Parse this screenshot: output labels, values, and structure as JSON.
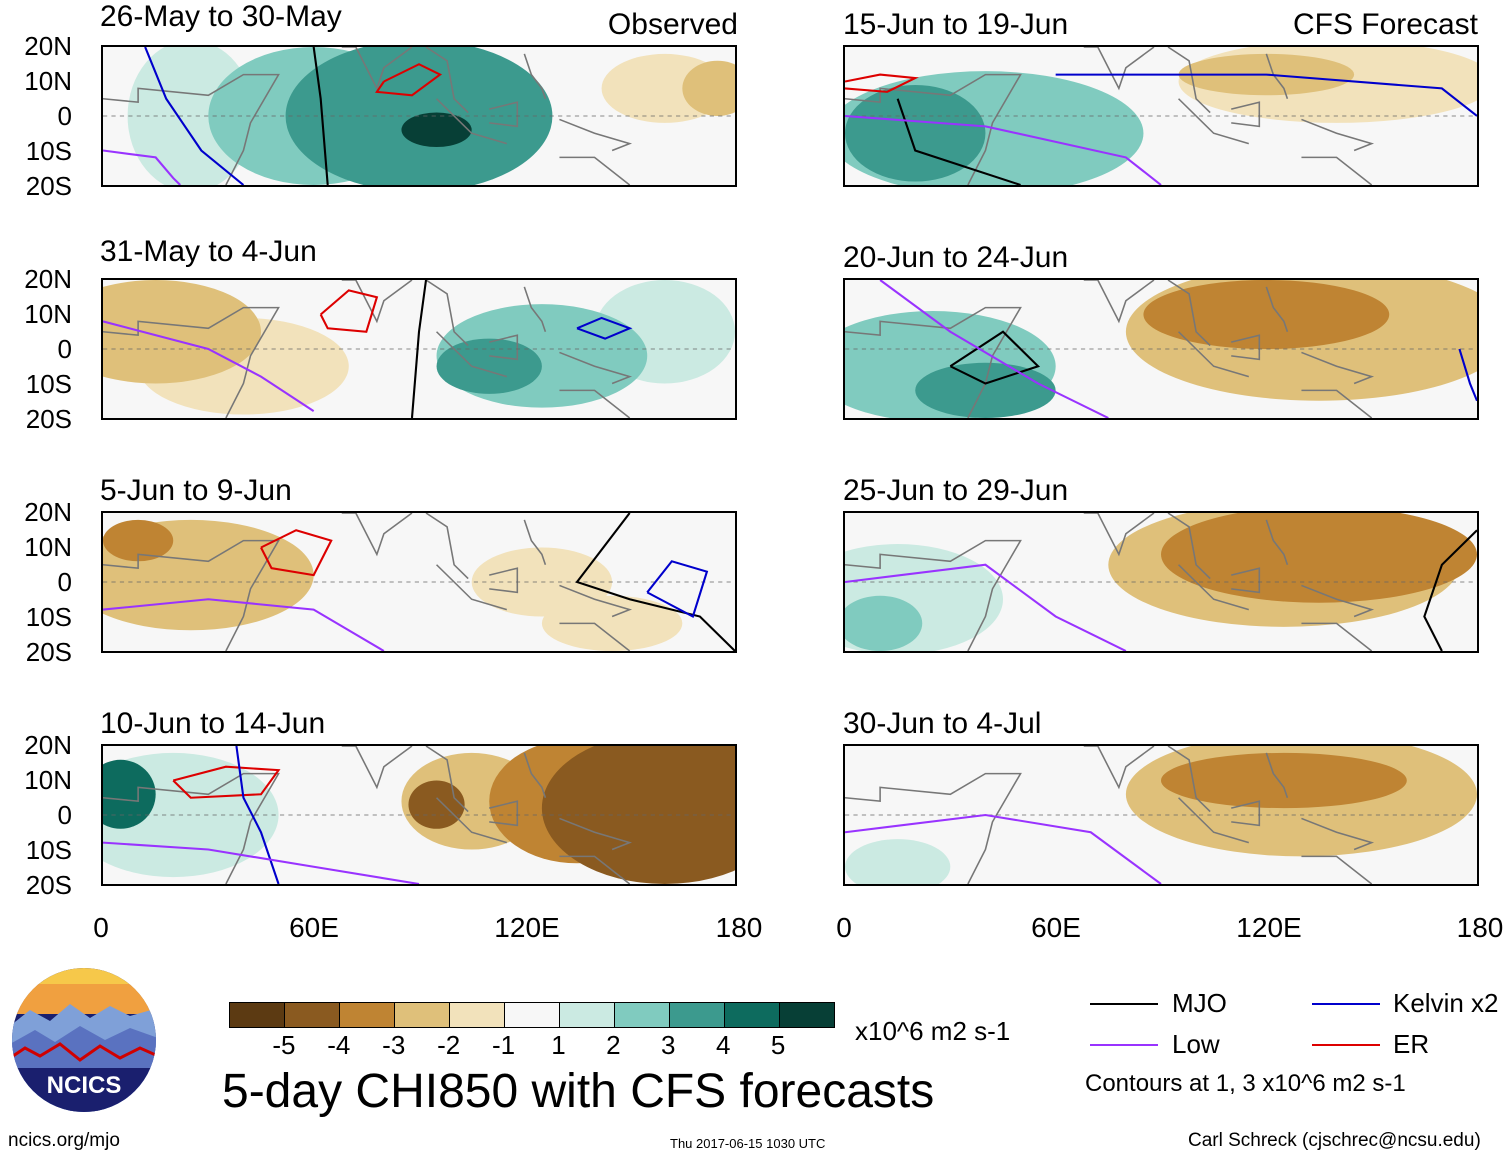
{
  "figure": {
    "title": "5-day CHI850 with CFS forecasts",
    "units": "x10^6 m2 s-1",
    "observed_label": "Observed",
    "forecast_label": "CFS Forecast"
  },
  "axes": {
    "y_ticks": [
      "20N",
      "10N",
      "0",
      "10S",
      "20S"
    ],
    "x_ticks": [
      "0",
      "60E",
      "120E",
      "180"
    ]
  },
  "panels": {
    "observed": [
      {
        "period": "26-May to 30-May"
      },
      {
        "period": "31-May to 4-Jun"
      },
      {
        "period": "5-Jun to 9-Jun"
      },
      {
        "period": "10-Jun to 14-Jun"
      }
    ],
    "forecast": [
      {
        "period": "15-Jun to 19-Jun"
      },
      {
        "period": "20-Jun to 24-Jun"
      },
      {
        "period": "25-Jun to 29-Jun"
      },
      {
        "period": "30-Jun to 4-Jul"
      }
    ]
  },
  "colorbar": {
    "labels": [
      "-5",
      "-4",
      "-3",
      "-2",
      "-1",
      "1",
      "2",
      "3",
      "4",
      "5"
    ],
    "colors": [
      "#5c3a12",
      "#8a5a20",
      "#bf8433",
      "#dfc07a",
      "#f2e2bb",
      "#f7f7f7",
      "#cbeae2",
      "#80cbbf",
      "#3c9a8e",
      "#0d6b5e",
      "#073f36"
    ]
  },
  "legend": {
    "items": [
      {
        "label": "MJO",
        "color": "#000000"
      },
      {
        "label": "Kelvin x2",
        "color": "#0000cc"
      },
      {
        "label": "Low",
        "color": "#9933ff"
      },
      {
        "label": "ER",
        "color": "#dd0000"
      }
    ],
    "note": "Contours at 1, 3 x10^6 m2 s-1"
  },
  "logo": {
    "text": "NCICS"
  },
  "footer": {
    "url": "ncics.org/mjo",
    "timestamp": "Thu 2017-06-15 1030 UTC",
    "author": "Carl Schreck (cjschrec@ncsu.edu)"
  },
  "map_data": {
    "domain": {
      "lon": [
        0,
        180
      ],
      "lat": [
        -20,
        20
      ]
    },
    "observed": [
      {
        "shading": [
          {
            "lon": 90,
            "lat": 0,
            "rx": 38,
            "ry": 22,
            "level": 3
          },
          {
            "lon": 95,
            "lat": -4,
            "rx": 10,
            "ry": 5,
            "level": 5
          },
          {
            "lon": 60,
            "lat": 0,
            "rx": 30,
            "ry": 20,
            "level": 2
          },
          {
            "lon": 25,
            "lat": 0,
            "rx": 18,
            "ry": 22,
            "level": 1
          },
          {
            "lon": 160,
            "lat": 8,
            "rx": 18,
            "ry": 10,
            "level": -1
          },
          {
            "lon": 175,
            "lat": 8,
            "rx": 10,
            "ry": 8,
            "level": -2
          }
        ],
        "contours": [
          {
            "type": "mjo",
            "points": [
              [
                60,
                20
              ],
              [
                62,
                5
              ],
              [
                64,
                -20
              ]
            ]
          },
          {
            "type": "er",
            "points": [
              [
                80,
                10
              ],
              [
                90,
                15
              ],
              [
                96,
                12
              ],
              [
                88,
                6
              ],
              [
                78,
                7
              ],
              [
                80,
                10
              ]
            ]
          },
          {
            "type": "kelvin",
            "points": [
              [
                12,
                20
              ],
              [
                18,
                5
              ],
              [
                28,
                -10
              ],
              [
                40,
                -20
              ]
            ]
          },
          {
            "type": "low",
            "points": [
              [
                0,
                -10
              ],
              [
                15,
                -12
              ],
              [
                20,
                -18
              ],
              [
                22,
                -20
              ]
            ]
          }
        ]
      },
      {
        "shading": [
          {
            "lon": 125,
            "lat": -2,
            "rx": 30,
            "ry": 15,
            "level": 2
          },
          {
            "lon": 110,
            "lat": -5,
            "rx": 15,
            "ry": 8,
            "level": 3
          },
          {
            "lon": 160,
            "lat": 5,
            "rx": 20,
            "ry": 15,
            "level": 1
          },
          {
            "lon": 15,
            "lat": 5,
            "rx": 30,
            "ry": 15,
            "level": -2
          },
          {
            "lon": 40,
            "lat": -5,
            "rx": 30,
            "ry": 14,
            "level": -1
          }
        ],
        "contours": [
          {
            "type": "mjo",
            "points": [
              [
                92,
                20
              ],
              [
                90,
                5
              ],
              [
                88,
                -20
              ]
            ]
          },
          {
            "type": "er",
            "points": [
              [
                62,
                10
              ],
              [
                70,
                17
              ],
              [
                78,
                15
              ],
              [
                75,
                5
              ],
              [
                64,
                6
              ],
              [
                62,
                10
              ]
            ]
          },
          {
            "type": "kelvin",
            "points": [
              [
                135,
                6
              ],
              [
                142,
                9
              ],
              [
                150,
                6
              ],
              [
                143,
                3
              ],
              [
                135,
                6
              ]
            ]
          },
          {
            "type": "low",
            "points": [
              [
                0,
                8
              ],
              [
                30,
                0
              ],
              [
                45,
                -8
              ],
              [
                60,
                -18
              ]
            ]
          }
        ]
      },
      {
        "shading": [
          {
            "lon": 25,
            "lat": 2,
            "rx": 35,
            "ry": 16,
            "level": -2
          },
          {
            "lon": 10,
            "lat": 12,
            "rx": 10,
            "ry": 6,
            "level": -3
          },
          {
            "lon": 125,
            "lat": 0,
            "rx": 20,
            "ry": 10,
            "level": -1
          },
          {
            "lon": 145,
            "lat": -12,
            "rx": 20,
            "ry": 8,
            "level": -1
          }
        ],
        "contours": [
          {
            "type": "mjo",
            "points": [
              [
                150,
                20
              ],
              [
                135,
                0
              ],
              [
                150,
                -5
              ],
              [
                170,
                -10
              ],
              [
                180,
                -20
              ]
            ]
          },
          {
            "type": "er",
            "points": [
              [
                45,
                10
              ],
              [
                55,
                15
              ],
              [
                65,
                12
              ],
              [
                60,
                2
              ],
              [
                48,
                4
              ],
              [
                45,
                10
              ]
            ]
          },
          {
            "type": "kelvin",
            "points": [
              [
                155,
                -3
              ],
              [
                162,
                6
              ],
              [
                172,
                3
              ],
              [
                168,
                -10
              ],
              [
                155,
                -3
              ]
            ]
          },
          {
            "type": "low",
            "points": [
              [
                0,
                -8
              ],
              [
                30,
                -5
              ],
              [
                60,
                -8
              ],
              [
                80,
                -20
              ]
            ]
          }
        ]
      },
      {
        "shading": [
          {
            "lon": 160,
            "lat": 2,
            "rx": 35,
            "ry": 22,
            "level": -4
          },
          {
            "lon": 135,
            "lat": 4,
            "rx": 25,
            "ry": 18,
            "level": -3
          },
          {
            "lon": 105,
            "lat": 4,
            "rx": 20,
            "ry": 14,
            "level": -2
          },
          {
            "lon": 95,
            "lat": 3,
            "rx": 8,
            "ry": 7,
            "level": -4
          },
          {
            "lon": 20,
            "lat": 0,
            "rx": 30,
            "ry": 18,
            "level": 1
          },
          {
            "lon": 5,
            "lat": 6,
            "rx": 10,
            "ry": 10,
            "level": 4
          }
        ],
        "contours": [
          {
            "type": "er",
            "points": [
              [
                20,
                10
              ],
              [
                35,
                14
              ],
              [
                50,
                13
              ],
              [
                45,
                6
              ],
              [
                25,
                5
              ],
              [
                20,
                10
              ]
            ]
          },
          {
            "type": "kelvin",
            "points": [
              [
                38,
                20
              ],
              [
                40,
                5
              ],
              [
                45,
                -5
              ],
              [
                50,
                -20
              ]
            ]
          },
          {
            "type": "low",
            "points": [
              [
                0,
                -8
              ],
              [
                30,
                -10
              ],
              [
                60,
                -15
              ],
              [
                90,
                -20
              ]
            ]
          }
        ]
      }
    ],
    "forecast": [
      {
        "shading": [
          {
            "lon": 40,
            "lat": -5,
            "rx": 45,
            "ry": 18,
            "level": 2
          },
          {
            "lon": 20,
            "lat": -5,
            "rx": 20,
            "ry": 14,
            "level": 3
          },
          {
            "lon": 140,
            "lat": 10,
            "rx": 45,
            "ry": 12,
            "level": -1
          },
          {
            "lon": 120,
            "lat": 12,
            "rx": 25,
            "ry": 6,
            "level": -2
          }
        ],
        "contours": [
          {
            "type": "er",
            "points": [
              [
                0,
                10
              ],
              [
                10,
                12
              ],
              [
                20,
                11
              ],
              [
                12,
                7
              ],
              [
                0,
                8
              ]
            ]
          },
          {
            "type": "kelvin",
            "points": [
              [
                60,
                12
              ],
              [
                120,
                12
              ],
              [
                170,
                8
              ],
              [
                180,
                0
              ]
            ]
          },
          {
            "type": "mjo",
            "points": [
              [
                15,
                5
              ],
              [
                20,
                -10
              ],
              [
                50,
                -20
              ]
            ]
          },
          {
            "type": "low",
            "points": [
              [
                0,
                0
              ],
              [
                40,
                -3
              ],
              [
                80,
                -12
              ],
              [
                90,
                -20
              ]
            ]
          }
        ]
      },
      {
        "shading": [
          {
            "lon": 135,
            "lat": 5,
            "rx": 55,
            "ry": 20,
            "level": -2
          },
          {
            "lon": 120,
            "lat": 10,
            "rx": 35,
            "ry": 10,
            "level": -3
          },
          {
            "lon": 25,
            "lat": -5,
            "rx": 35,
            "ry": 16,
            "level": 2
          },
          {
            "lon": 40,
            "lat": -12,
            "rx": 20,
            "ry": 8,
            "level": 3
          }
        ],
        "contours": [
          {
            "type": "mjo",
            "points": [
              [
                30,
                -5
              ],
              [
                45,
                5
              ],
              [
                55,
                -5
              ],
              [
                40,
                -10
              ],
              [
                30,
                -5
              ]
            ]
          },
          {
            "type": "kelvin",
            "points": [
              [
                175,
                0
              ],
              [
                178,
                -10
              ],
              [
                180,
                -15
              ]
            ]
          },
          {
            "type": "low",
            "points": [
              [
                10,
                20
              ],
              [
                30,
                5
              ],
              [
                55,
                -10
              ],
              [
                75,
                -20
              ]
            ]
          }
        ]
      },
      {
        "shading": [
          {
            "lon": 135,
            "lat": 8,
            "rx": 45,
            "ry": 14,
            "level": -3
          },
          {
            "lon": 125,
            "lat": 5,
            "rx": 50,
            "ry": 18,
            "level": -2
          },
          {
            "lon": 15,
            "lat": -5,
            "rx": 30,
            "ry": 16,
            "level": 1
          },
          {
            "lon": 10,
            "lat": -12,
            "rx": 12,
            "ry": 8,
            "level": 2
          }
        ],
        "contours": [
          {
            "type": "mjo",
            "points": [
              [
                180,
                15
              ],
              [
                170,
                5
              ],
              [
                165,
                -10
              ],
              [
                170,
                -20
              ]
            ]
          },
          {
            "type": "low",
            "points": [
              [
                0,
                0
              ],
              [
                40,
                5
              ],
              [
                60,
                -10
              ],
              [
                80,
                -20
              ]
            ]
          }
        ]
      },
      {
        "shading": [
          {
            "lon": 130,
            "lat": 6,
            "rx": 50,
            "ry": 18,
            "level": -2
          },
          {
            "lon": 125,
            "lat": 10,
            "rx": 35,
            "ry": 8,
            "level": -3
          },
          {
            "lon": 15,
            "lat": -15,
            "rx": 15,
            "ry": 8,
            "level": 1
          }
        ],
        "contours": [
          {
            "type": "low",
            "points": [
              [
                0,
                -5
              ],
              [
                40,
                0
              ],
              [
                70,
                -5
              ],
              [
                90,
                -20
              ]
            ]
          }
        ]
      }
    ]
  }
}
